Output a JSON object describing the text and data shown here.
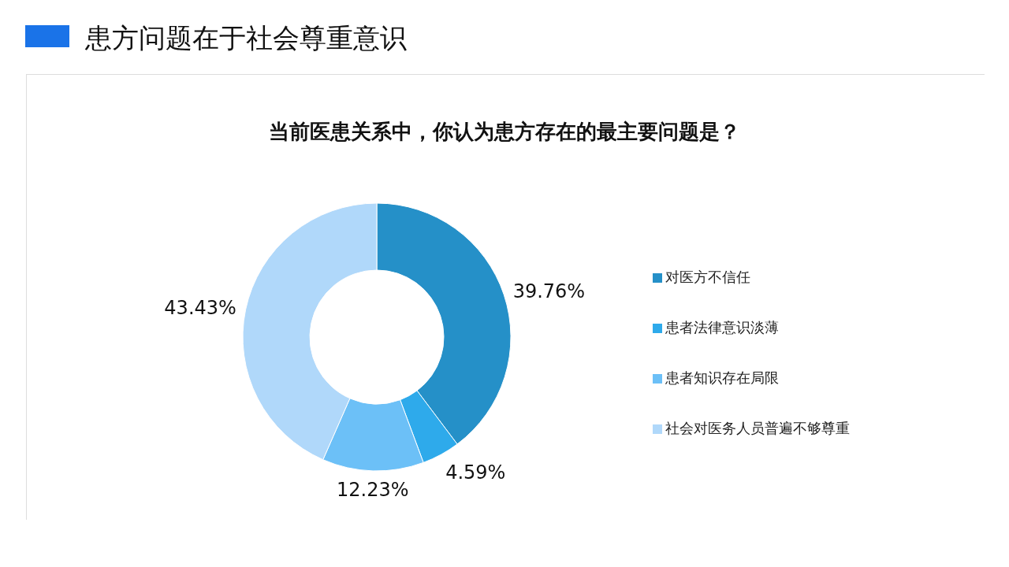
{
  "chart_data": {
    "type": "donut",
    "title": "患方问题在于社会尊重意识",
    "subtitle": "当前医患关系中，你认为患方存在的最主要问题是？",
    "categories": [
      "对医方不信任",
      "患者法律意识淡薄",
      "患者知识存在局限",
      "社会对医务人员普遍不够尊重"
    ],
    "values": [
      39.76,
      4.59,
      12.23,
      43.43
    ],
    "value_labels": [
      "39.76%",
      "4.59%",
      "12.23%",
      "43.43%"
    ],
    "colors": [
      "#2590c8",
      "#2eaaeb",
      "#6cc0f7",
      "#b0d8fa"
    ],
    "legend": "right"
  }
}
